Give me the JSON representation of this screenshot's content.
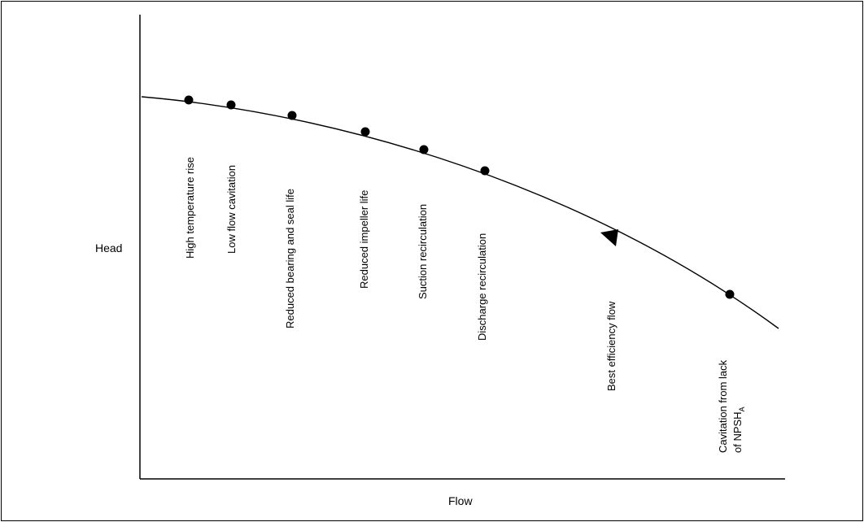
{
  "diagram": {
    "y_axis_label": "Head",
    "x_axis_label": "Flow",
    "points": [
      {
        "label": "High temperature rise",
        "marker": "dot"
      },
      {
        "label": "Low flow cavitation",
        "marker": "dot"
      },
      {
        "label": "Reduced bearing and seal life",
        "marker": "dot"
      },
      {
        "label": "Reduced impeller life",
        "marker": "dot"
      },
      {
        "label": "Suction recirculation",
        "marker": "dot"
      },
      {
        "label": "Discharge recirculation",
        "marker": "dot"
      },
      {
        "label": "Best efficiency flow",
        "marker": "triangle"
      },
      {
        "label": "Cavitation from lack",
        "label_line2": "of NPSH",
        "label_subscript": "A",
        "marker": "dot"
      }
    ],
    "colors": {
      "line": "#000000",
      "background": "#ffffff"
    }
  }
}
